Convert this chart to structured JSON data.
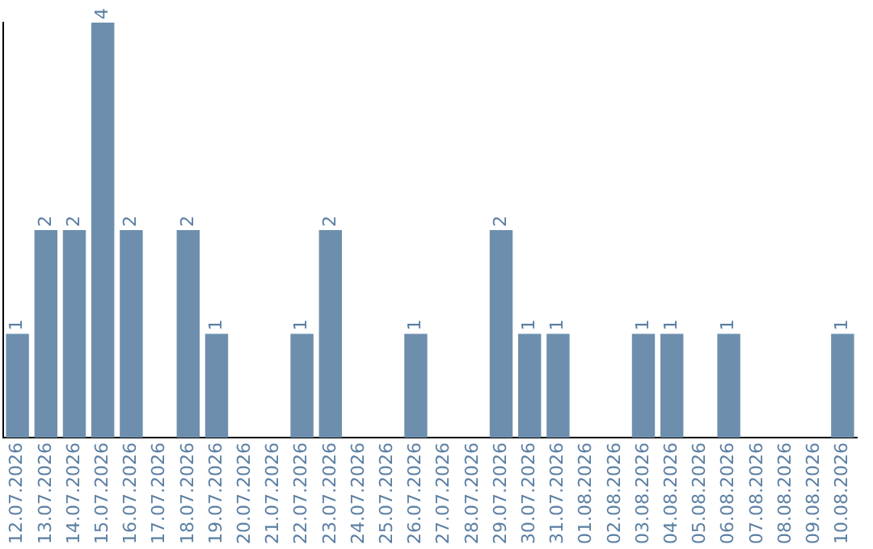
{
  "chart_data": {
    "type": "bar",
    "categories": [
      "12.07.2026",
      "13.07.2026",
      "14.07.2026",
      "15.07.2026",
      "16.07.2026",
      "17.07.2026",
      "18.07.2026",
      "19.07.2026",
      "20.07.2026",
      "21.07.2026",
      "22.07.2026",
      "23.07.2026",
      "24.07.2026",
      "25.07.2026",
      "26.07.2026",
      "27.07.2026",
      "28.07.2026",
      "29.07.2026",
      "30.07.2026",
      "31.07.2026",
      "01.08.2026",
      "02.08.2026",
      "03.08.2026",
      "04.08.2026",
      "05.08.2026",
      "06.08.2026",
      "07.08.2026",
      "08.08.2026",
      "09.08.2026",
      "10.08.2026"
    ],
    "values": [
      1,
      2,
      2,
      4,
      2,
      0,
      2,
      1,
      0,
      0,
      1,
      2,
      0,
      0,
      1,
      0,
      0,
      2,
      1,
      1,
      0,
      0,
      1,
      1,
      0,
      1,
      0,
      0,
      0,
      1
    ],
    "value_labels": [
      "1",
      "2",
      "2",
      "4",
      "2",
      null,
      "2",
      "1",
      null,
      null,
      "1",
      "2",
      null,
      null,
      "1",
      null,
      null,
      "2",
      "1",
      "1",
      null,
      null,
      "1",
      "1",
      null,
      "1",
      null,
      null,
      null,
      "1"
    ],
    "color": "#6d8fad",
    "grid": false,
    "legend": false,
    "tick_labels": "x"
  }
}
